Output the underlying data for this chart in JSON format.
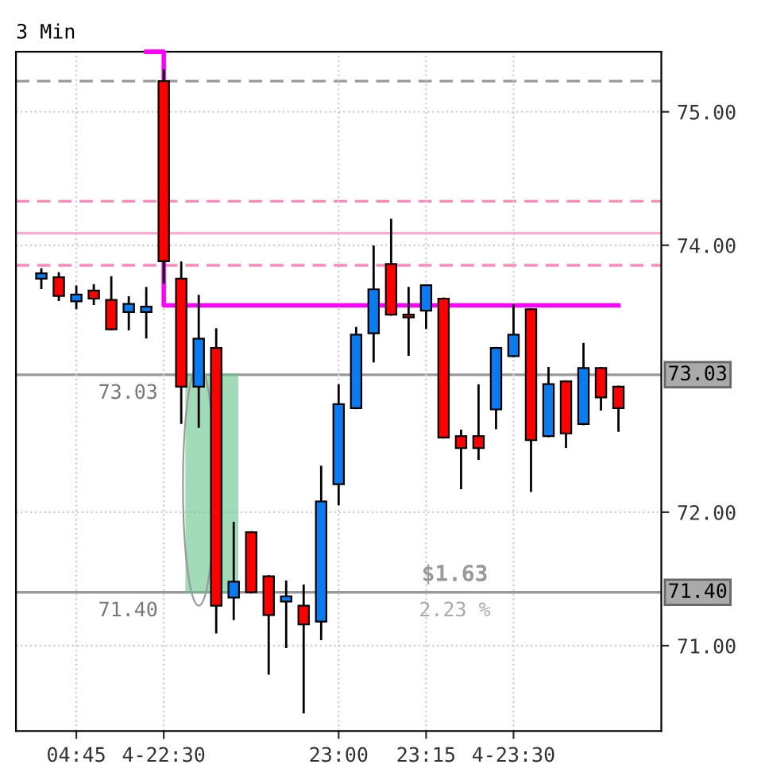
{
  "chart_data": {
    "type": "candlestick",
    "title": "3 Min",
    "categories": [
      null,
      null,
      "04:45",
      null,
      null,
      null,
      null,
      "4-22:30",
      null,
      null,
      null,
      null,
      null,
      null,
      null,
      null,
      null,
      "23:00",
      null,
      null,
      null,
      null,
      "23:15",
      null,
      null,
      null,
      null,
      "4-23:30",
      null,
      null,
      null,
      null,
      null,
      null
    ],
    "ohlc": [
      [
        73.75,
        73.82,
        73.68,
        73.79
      ],
      [
        73.76,
        73.79,
        73.59,
        73.62
      ],
      [
        73.58,
        73.69,
        73.53,
        73.63
      ],
      [
        73.66,
        73.7,
        73.56,
        73.6
      ],
      [
        73.59,
        73.76,
        73.37,
        73.37
      ],
      [
        73.5,
        73.61,
        73.37,
        73.56
      ],
      [
        73.5,
        73.68,
        73.31,
        73.54
      ],
      [
        75.23,
        75.31,
        73.72,
        73.88
      ],
      [
        73.75,
        73.87,
        72.67,
        72.94
      ],
      [
        72.94,
        73.62,
        72.64,
        73.3
      ],
      [
        73.23,
        73.37,
        71.1,
        71.3
      ],
      [
        71.36,
        71.92,
        71.2,
        71.48
      ],
      [
        71.85,
        71.85,
        71.4,
        71.4
      ],
      [
        71.52,
        71.52,
        70.79,
        71.23
      ],
      [
        71.33,
        71.48,
        70.99,
        71.37
      ],
      [
        71.3,
        71.45,
        70.5,
        71.16
      ],
      [
        71.18,
        72.34,
        71.05,
        72.08
      ],
      [
        72.21,
        72.95,
        72.06,
        72.81
      ],
      [
        72.78,
        73.38,
        72.78,
        73.33
      ],
      [
        73.34,
        73.99,
        73.13,
        73.67
      ],
      [
        73.86,
        74.19,
        73.48,
        73.48
      ],
      [
        73.48,
        73.68,
        73.18,
        73.46
      ],
      [
        73.51,
        73.7,
        73.38,
        73.7
      ],
      [
        73.6,
        73.6,
        72.56,
        72.56
      ],
      [
        72.57,
        72.61,
        72.18,
        72.48
      ],
      [
        72.57,
        72.95,
        72.4,
        72.48
      ],
      [
        72.77,
        73.23,
        72.63,
        73.23
      ],
      [
        73.17,
        73.55,
        73.17,
        73.33
      ],
      [
        73.52,
        73.52,
        72.16,
        72.54
      ],
      [
        72.57,
        73.08,
        72.57,
        72.96
      ],
      [
        72.98,
        72.98,
        72.49,
        72.59
      ],
      [
        72.66,
        73.26,
        72.66,
        73.08
      ],
      [
        73.08,
        73.08,
        72.77,
        72.86
      ],
      [
        72.94,
        72.94,
        72.61,
        72.78
      ]
    ],
    "series": [
      {
        "type": "step",
        "color": "#ff00ff",
        "values": [
          null,
          null,
          null,
          null,
          null,
          null,
          75.45,
          73.55,
          73.55,
          73.55,
          73.55,
          73.55,
          73.55,
          73.55,
          73.55,
          73.55,
          73.55,
          73.55,
          73.55,
          73.55,
          73.55,
          73.55,
          73.55,
          73.55,
          73.55,
          73.55,
          73.55,
          73.55,
          73.55,
          73.55,
          73.55,
          73.55,
          73.55,
          73.55
        ]
      }
    ],
    "ylim": [
      70.36,
      75.45
    ],
    "yticks": [
      {
        "value": 71,
        "label": "71.00"
      },
      {
        "value": 72,
        "label": "72.00"
      },
      {
        "value": 74,
        "label": "74.00"
      },
      {
        "value": 75,
        "label": "75.00"
      }
    ],
    "ref_lines": [
      {
        "axis": "y",
        "value": 75.23,
        "color": "#999999",
        "line_style": "dashed"
      },
      {
        "axis": "y",
        "value": 74.33,
        "color": "#ff88bb",
        "line_style": "dashed"
      },
      {
        "axis": "y",
        "value": 74.09,
        "color": "#ffaad0",
        "line_style": "solid"
      },
      {
        "axis": "y",
        "value": 73.85,
        "color": "#ff88bb",
        "line_style": "dashed"
      },
      {
        "axis": "y",
        "value": 73.03,
        "label": "73.03",
        "color": "#999999",
        "line_style": "solid"
      },
      {
        "axis": "y",
        "value": 71.4,
        "label": "71.40",
        "color": "#999999",
        "line_style": "solid"
      }
    ],
    "annotations": [
      {
        "text": "73.03",
        "y": 73.03
      },
      {
        "text": "71.40",
        "y": 71.4
      },
      {
        "text": "$1.63",
        "y": 71.4
      },
      {
        "text": "2.23 %",
        "y": 71.4
      }
    ],
    "grid": true
  }
}
